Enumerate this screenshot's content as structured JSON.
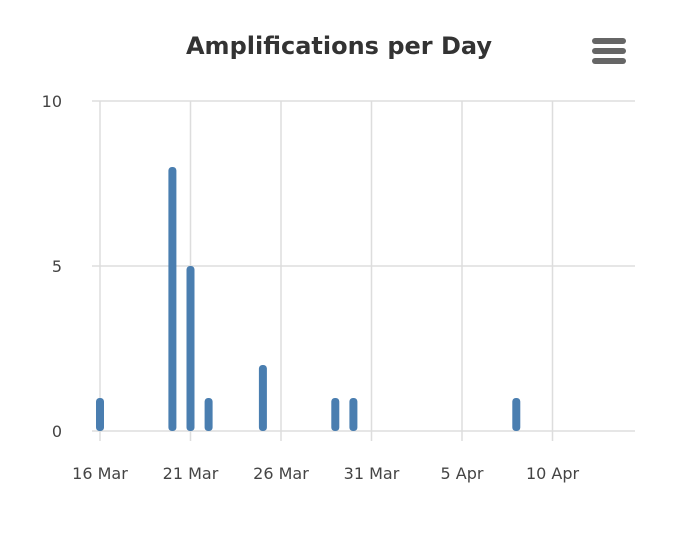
{
  "chart_data": {
    "type": "bar",
    "title": "Amplifications per Day",
    "xlabel": "",
    "ylabel": "",
    "x_is_date": true,
    "x_range": [
      "2020-03-16",
      "2020-04-15"
    ],
    "x_ticks": [
      {
        "date": "2020-03-16",
        "label": "16 Mar"
      },
      {
        "date": "2020-03-21",
        "label": "21 Mar"
      },
      {
        "date": "2020-03-26",
        "label": "26 Mar"
      },
      {
        "date": "2020-03-31",
        "label": "31 Mar"
      },
      {
        "date": "2020-04-05",
        "label": "5 Apr"
      },
      {
        "date": "2020-04-10",
        "label": "10 Apr"
      }
    ],
    "ylim": [
      0,
      10
    ],
    "y_ticks": [
      0,
      5,
      10
    ],
    "grid": true,
    "legend": "none",
    "series": [
      {
        "color": "#4a7eb0",
        "points": [
          {
            "x": "2020-03-16",
            "y": 1
          },
          {
            "x": "2020-03-20",
            "y": 8
          },
          {
            "x": "2020-03-21",
            "y": 5
          },
          {
            "x": "2020-03-22",
            "y": 1
          },
          {
            "x": "2020-03-25",
            "y": 2
          },
          {
            "x": "2020-03-29",
            "y": 1
          },
          {
            "x": "2020-03-30",
            "y": 1
          },
          {
            "x": "2020-04-08",
            "y": 1
          }
        ]
      }
    ]
  },
  "menu": {
    "icon": "hamburger-menu-icon"
  },
  "colors": {
    "grid": "#dddddd",
    "bar": "#4a7eb0",
    "title": "#333333",
    "menu_icon": "#666666"
  }
}
